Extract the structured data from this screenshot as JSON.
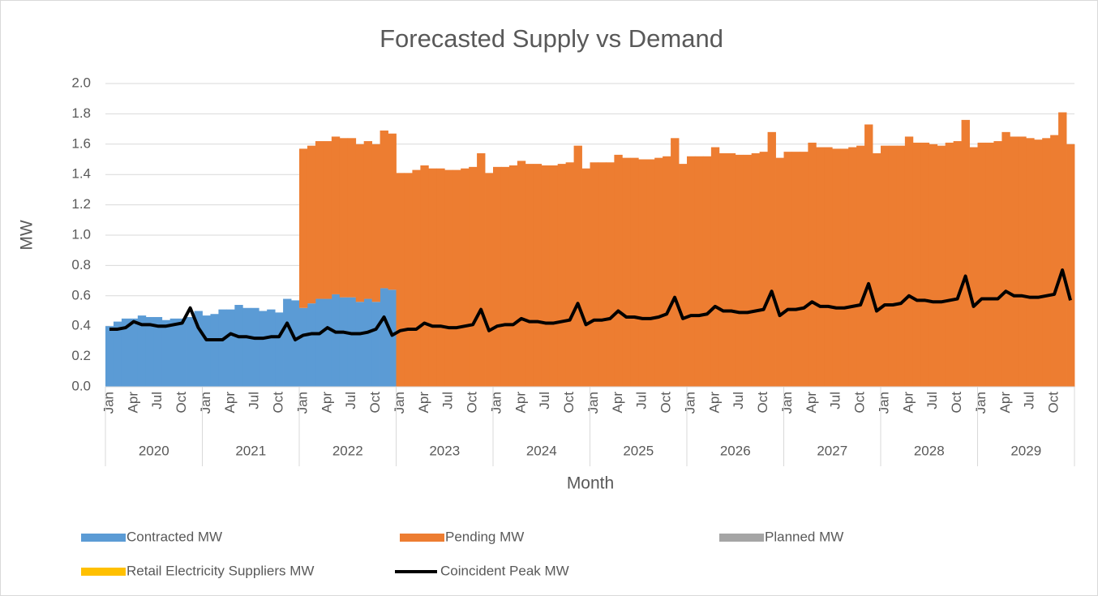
{
  "chart_data": {
    "type": "bar",
    "stacked": true,
    "title": "Forecasted Supply vs Demand",
    "y_label": "MW",
    "x_label": "Month",
    "categories": [
      "Jan",
      null,
      null,
      "Apr",
      null,
      null,
      "Jul",
      null,
      null,
      "Oct",
      null,
      null,
      "Jan",
      null,
      null,
      "Apr",
      null,
      null,
      "Jul",
      null,
      null,
      "Oct",
      null,
      null,
      "Jan",
      null,
      null,
      "Apr",
      null,
      null,
      "Jul",
      null,
      null,
      "Oct",
      null,
      null,
      "Jan",
      null,
      null,
      "Apr",
      null,
      null,
      "Jul",
      null,
      null,
      "Oct",
      null,
      null,
      "Jan",
      null,
      null,
      "Apr",
      null,
      null,
      "Jul",
      null,
      null,
      "Oct",
      null,
      null,
      "Jan",
      null,
      null,
      "Apr",
      null,
      null,
      "Jul",
      null,
      null,
      "Oct",
      null,
      null,
      "Jan",
      null,
      null,
      "Apr",
      null,
      null,
      "Jul",
      null,
      null,
      "Oct",
      null,
      null,
      "Jan",
      null,
      null,
      "Apr",
      null,
      null,
      "Jul",
      null,
      null,
      "Oct",
      null,
      null,
      "Jan",
      null,
      null,
      "Apr",
      null,
      null,
      "Jul",
      null,
      null,
      "Oct",
      null,
      null,
      "Jan",
      null,
      null,
      "Apr",
      null,
      null,
      "Jul",
      null,
      null,
      "Oct",
      null,
      null
    ],
    "years": [
      "2020",
      "2021",
      "2022",
      "2023",
      "2024",
      "2025",
      "2026",
      "2027",
      "2028",
      "2029"
    ],
    "ylim": [
      0,
      2
    ],
    "yticks": [
      {
        "value": 0,
        "label": "0.0"
      },
      {
        "value": 0.2,
        "label": "0.2"
      },
      {
        "value": 0.4,
        "label": "0.4"
      },
      {
        "value": 0.6,
        "label": "0.6"
      },
      {
        "value": 0.8,
        "label": "0.8"
      },
      {
        "value": 1,
        "label": "1.0"
      },
      {
        "value": 1.2,
        "label": "1.2"
      },
      {
        "value": 1.4,
        "label": "1.4"
      },
      {
        "value": 1.6,
        "label": "1.6"
      },
      {
        "value": 1.8,
        "label": "1.8"
      },
      {
        "value": 2,
        "label": "2.0"
      }
    ],
    "grid": true,
    "series": [
      {
        "name": "Contracted MW",
        "type": "bar",
        "color": "#5b9bd5",
        "values": [
          0.4,
          0.43,
          0.45,
          0.45,
          0.47,
          0.46,
          0.46,
          0.44,
          0.45,
          0.45,
          0.46,
          0.5,
          0.47,
          0.48,
          0.51,
          0.51,
          0.54,
          0.52,
          0.52,
          0.5,
          0.51,
          0.49,
          0.58,
          0.57,
          0.52,
          0.55,
          0.58,
          0.58,
          0.61,
          0.59,
          0.59,
          0.56,
          0.58,
          0.56,
          0.65,
          0.64,
          0,
          0,
          0,
          0,
          0,
          0,
          0,
          0,
          0,
          0,
          0,
          0,
          0,
          0,
          0,
          0,
          0,
          0,
          0,
          0,
          0,
          0,
          0,
          0,
          0,
          0,
          0,
          0,
          0,
          0,
          0,
          0,
          0,
          0,
          0,
          0,
          0,
          0,
          0,
          0,
          0,
          0,
          0,
          0,
          0,
          0,
          0,
          0,
          0,
          0,
          0,
          0,
          0,
          0,
          0,
          0,
          0,
          0,
          0,
          0,
          0,
          0,
          0,
          0,
          0,
          0,
          0,
          0,
          0,
          0,
          0,
          0,
          0,
          0,
          0,
          0,
          0,
          0,
          0,
          0,
          0,
          0,
          0,
          0
        ]
      },
      {
        "name": "Pending MW",
        "type": "bar",
        "color": "#ed7d31",
        "values": [
          0,
          0,
          0,
          0,
          0,
          0,
          0,
          0,
          0,
          0,
          0,
          0,
          0,
          0,
          0,
          0,
          0,
          0,
          0,
          0,
          0,
          0,
          0,
          0,
          1.05,
          1.04,
          1.04,
          1.04,
          1.04,
          1.05,
          1.05,
          1.04,
          1.04,
          1.04,
          1.04,
          1.03,
          1.41,
          1.41,
          1.43,
          1.46,
          1.44,
          1.44,
          1.43,
          1.43,
          1.44,
          1.45,
          1.54,
          1.41,
          1.45,
          1.45,
          1.46,
          1.49,
          1.47,
          1.47,
          1.46,
          1.46,
          1.47,
          1.48,
          1.59,
          1.44,
          1.48,
          1.48,
          1.48,
          1.53,
          1.51,
          1.51,
          1.5,
          1.5,
          1.51,
          1.52,
          1.64,
          1.47,
          1.52,
          1.52,
          1.52,
          1.58,
          1.54,
          1.54,
          1.53,
          1.53,
          1.54,
          1.55,
          1.68,
          1.51,
          1.55,
          1.55,
          1.55,
          1.61,
          1.58,
          1.58,
          1.57,
          1.57,
          1.58,
          1.59,
          1.73,
          1.54,
          1.59,
          1.59,
          1.59,
          1.65,
          1.61,
          1.61,
          1.6,
          1.59,
          1.61,
          1.62,
          1.76,
          1.58,
          1.61,
          1.61,
          1.62,
          1.68,
          1.65,
          1.65,
          1.64,
          1.63,
          1.64,
          1.66,
          1.81,
          1.6
        ]
      },
      {
        "name": "Planned MW",
        "type": "bar",
        "color": "#a5a5a5",
        "values": [
          0,
          0,
          0,
          0,
          0,
          0,
          0,
          0,
          0,
          0,
          0,
          0,
          0,
          0,
          0,
          0,
          0,
          0,
          0,
          0,
          0,
          0,
          0,
          0,
          0,
          0,
          0,
          0,
          0,
          0,
          0,
          0,
          0,
          0,
          0,
          0,
          0,
          0,
          0,
          0,
          0,
          0,
          0,
          0,
          0,
          0,
          0,
          0,
          0,
          0,
          0,
          0,
          0,
          0,
          0,
          0,
          0,
          0,
          0,
          0,
          0,
          0,
          0,
          0,
          0,
          0,
          0,
          0,
          0,
          0,
          0,
          0,
          0,
          0,
          0,
          0,
          0,
          0,
          0,
          0,
          0,
          0,
          0,
          0,
          0,
          0,
          0,
          0,
          0,
          0,
          0,
          0,
          0,
          0,
          0,
          0,
          0,
          0,
          0,
          0,
          0,
          0,
          0,
          0,
          0,
          0,
          0,
          0,
          0,
          0,
          0,
          0,
          0,
          0,
          0,
          0,
          0,
          0,
          0,
          0
        ]
      },
      {
        "name": "Retail Electricity Suppliers MW",
        "type": "bar",
        "color": "#ffc000",
        "values": [
          0,
          0,
          0,
          0,
          0,
          0,
          0,
          0,
          0,
          0,
          0,
          0,
          0,
          0,
          0,
          0,
          0,
          0,
          0,
          0,
          0,
          0,
          0,
          0,
          0,
          0,
          0,
          0,
          0,
          0,
          0,
          0,
          0,
          0,
          0,
          0,
          0,
          0,
          0,
          0,
          0,
          0,
          0,
          0,
          0,
          0,
          0,
          0,
          0,
          0,
          0,
          0,
          0,
          0,
          0,
          0,
          0,
          0,
          0,
          0,
          0,
          0,
          0,
          0,
          0,
          0,
          0,
          0,
          0,
          0,
          0,
          0,
          0,
          0,
          0,
          0,
          0,
          0,
          0,
          0,
          0,
          0,
          0,
          0,
          0,
          0,
          0,
          0,
          0,
          0,
          0,
          0,
          0,
          0,
          0,
          0,
          0,
          0,
          0,
          0,
          0,
          0,
          0,
          0,
          0,
          0,
          0,
          0,
          0,
          0,
          0,
          0,
          0,
          0,
          0,
          0,
          0,
          0,
          0,
          0
        ]
      },
      {
        "name": "Coincident Peak MW",
        "type": "line",
        "color": "#000000",
        "values": [
          0.38,
          0.38,
          0.39,
          0.43,
          0.41,
          0.41,
          0.4,
          0.4,
          0.41,
          0.42,
          0.52,
          0.39,
          0.31,
          0.31,
          0.31,
          0.35,
          0.33,
          0.33,
          0.32,
          0.32,
          0.33,
          0.33,
          0.42,
          0.31,
          0.34,
          0.35,
          0.35,
          0.39,
          0.36,
          0.36,
          0.35,
          0.35,
          0.36,
          0.38,
          0.46,
          0.34,
          0.37,
          0.38,
          0.38,
          0.42,
          0.4,
          0.4,
          0.39,
          0.39,
          0.4,
          0.41,
          0.51,
          0.37,
          0.4,
          0.41,
          0.41,
          0.45,
          0.43,
          0.43,
          0.42,
          0.42,
          0.43,
          0.44,
          0.55,
          0.41,
          0.44,
          0.44,
          0.45,
          0.5,
          0.46,
          0.46,
          0.45,
          0.45,
          0.46,
          0.48,
          0.59,
          0.45,
          0.47,
          0.47,
          0.48,
          0.53,
          0.5,
          0.5,
          0.49,
          0.49,
          0.5,
          0.51,
          0.63,
          0.47,
          0.51,
          0.51,
          0.52,
          0.56,
          0.53,
          0.53,
          0.52,
          0.52,
          0.53,
          0.54,
          0.68,
          0.5,
          0.54,
          0.54,
          0.55,
          0.6,
          0.57,
          0.57,
          0.56,
          0.56,
          0.57,
          0.58,
          0.73,
          0.53,
          0.58,
          0.58,
          0.58,
          0.63,
          0.6,
          0.6,
          0.59,
          0.59,
          0.6,
          0.61,
          0.77,
          0.57
        ]
      }
    ]
  }
}
